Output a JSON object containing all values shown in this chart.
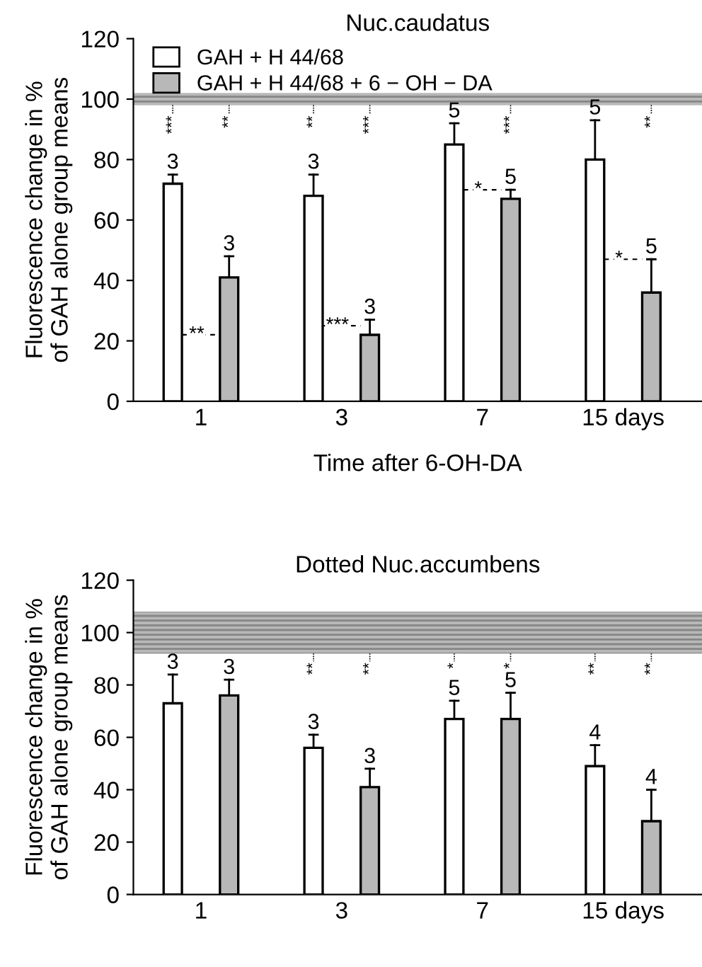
{
  "chart_data": [
    {
      "type": "bar",
      "title": "Nuc.caudatus",
      "xlabel": "Time after 6-OH-DA",
      "ylabel": "Fluorescence change in %\nof GAH alone group means",
      "categories": [
        "1",
        "3",
        "7",
        "15 days"
      ],
      "series": [
        {
          "name": "GAH + H 44/68",
          "color": "#ffffff",
          "values": [
            72,
            68,
            85,
            80
          ],
          "errors": [
            3,
            7,
            7,
            13
          ]
        },
        {
          "name": "GAH + H 44/68 + 6 − OH − DA",
          "color": "#b8b8b8",
          "values": [
            41,
            22,
            67,
            36
          ],
          "errors": [
            7,
            5,
            3,
            11
          ]
        }
      ],
      "ylim": [
        0,
        120
      ],
      "yticks": [
        0,
        20,
        40,
        60,
        80,
        100,
        120
      ],
      "bands": [
        {
          "axis": "y",
          "from": 98,
          "to": 102,
          "color": "#888888"
        }
      ],
      "annotations": [
        "3",
        "3",
        "5",
        "5",
        "3",
        "3",
        "5",
        "5",
        "***",
        "**",
        "**",
        "***",
        "***",
        "**",
        "**",
        "***",
        "*",
        "*"
      ],
      "legend": "top left",
      "grid": false
    },
    {
      "type": "bar",
      "title": "Dotted Nuc.accumbens",
      "ylabel": "Fluorescence change in %\nof GAH alone group means",
      "categories": [
        "1",
        "3",
        "7",
        "15 days"
      ],
      "series": [
        {
          "color": "#ffffff",
          "values": [
            73,
            56,
            67,
            49
          ],
          "errors": [
            11,
            5,
            7,
            8
          ]
        },
        {
          "color": "#b8b8b8",
          "values": [
            76,
            41,
            67,
            28
          ],
          "errors": [
            6,
            7,
            10,
            12
          ]
        }
      ],
      "ylim": [
        0,
        120
      ],
      "yticks": [
        0,
        20,
        40,
        60,
        80,
        100,
        120
      ],
      "bands": [
        {
          "axis": "y",
          "from": 92,
          "to": 108,
          "color": "#888888"
        }
      ],
      "annotations": [
        "3",
        "3",
        "5",
        "4",
        "3",
        "3",
        "5",
        "4",
        "**",
        "**",
        "*",
        "*",
        "**",
        "**"
      ],
      "legend": false,
      "grid": false
    }
  ]
}
